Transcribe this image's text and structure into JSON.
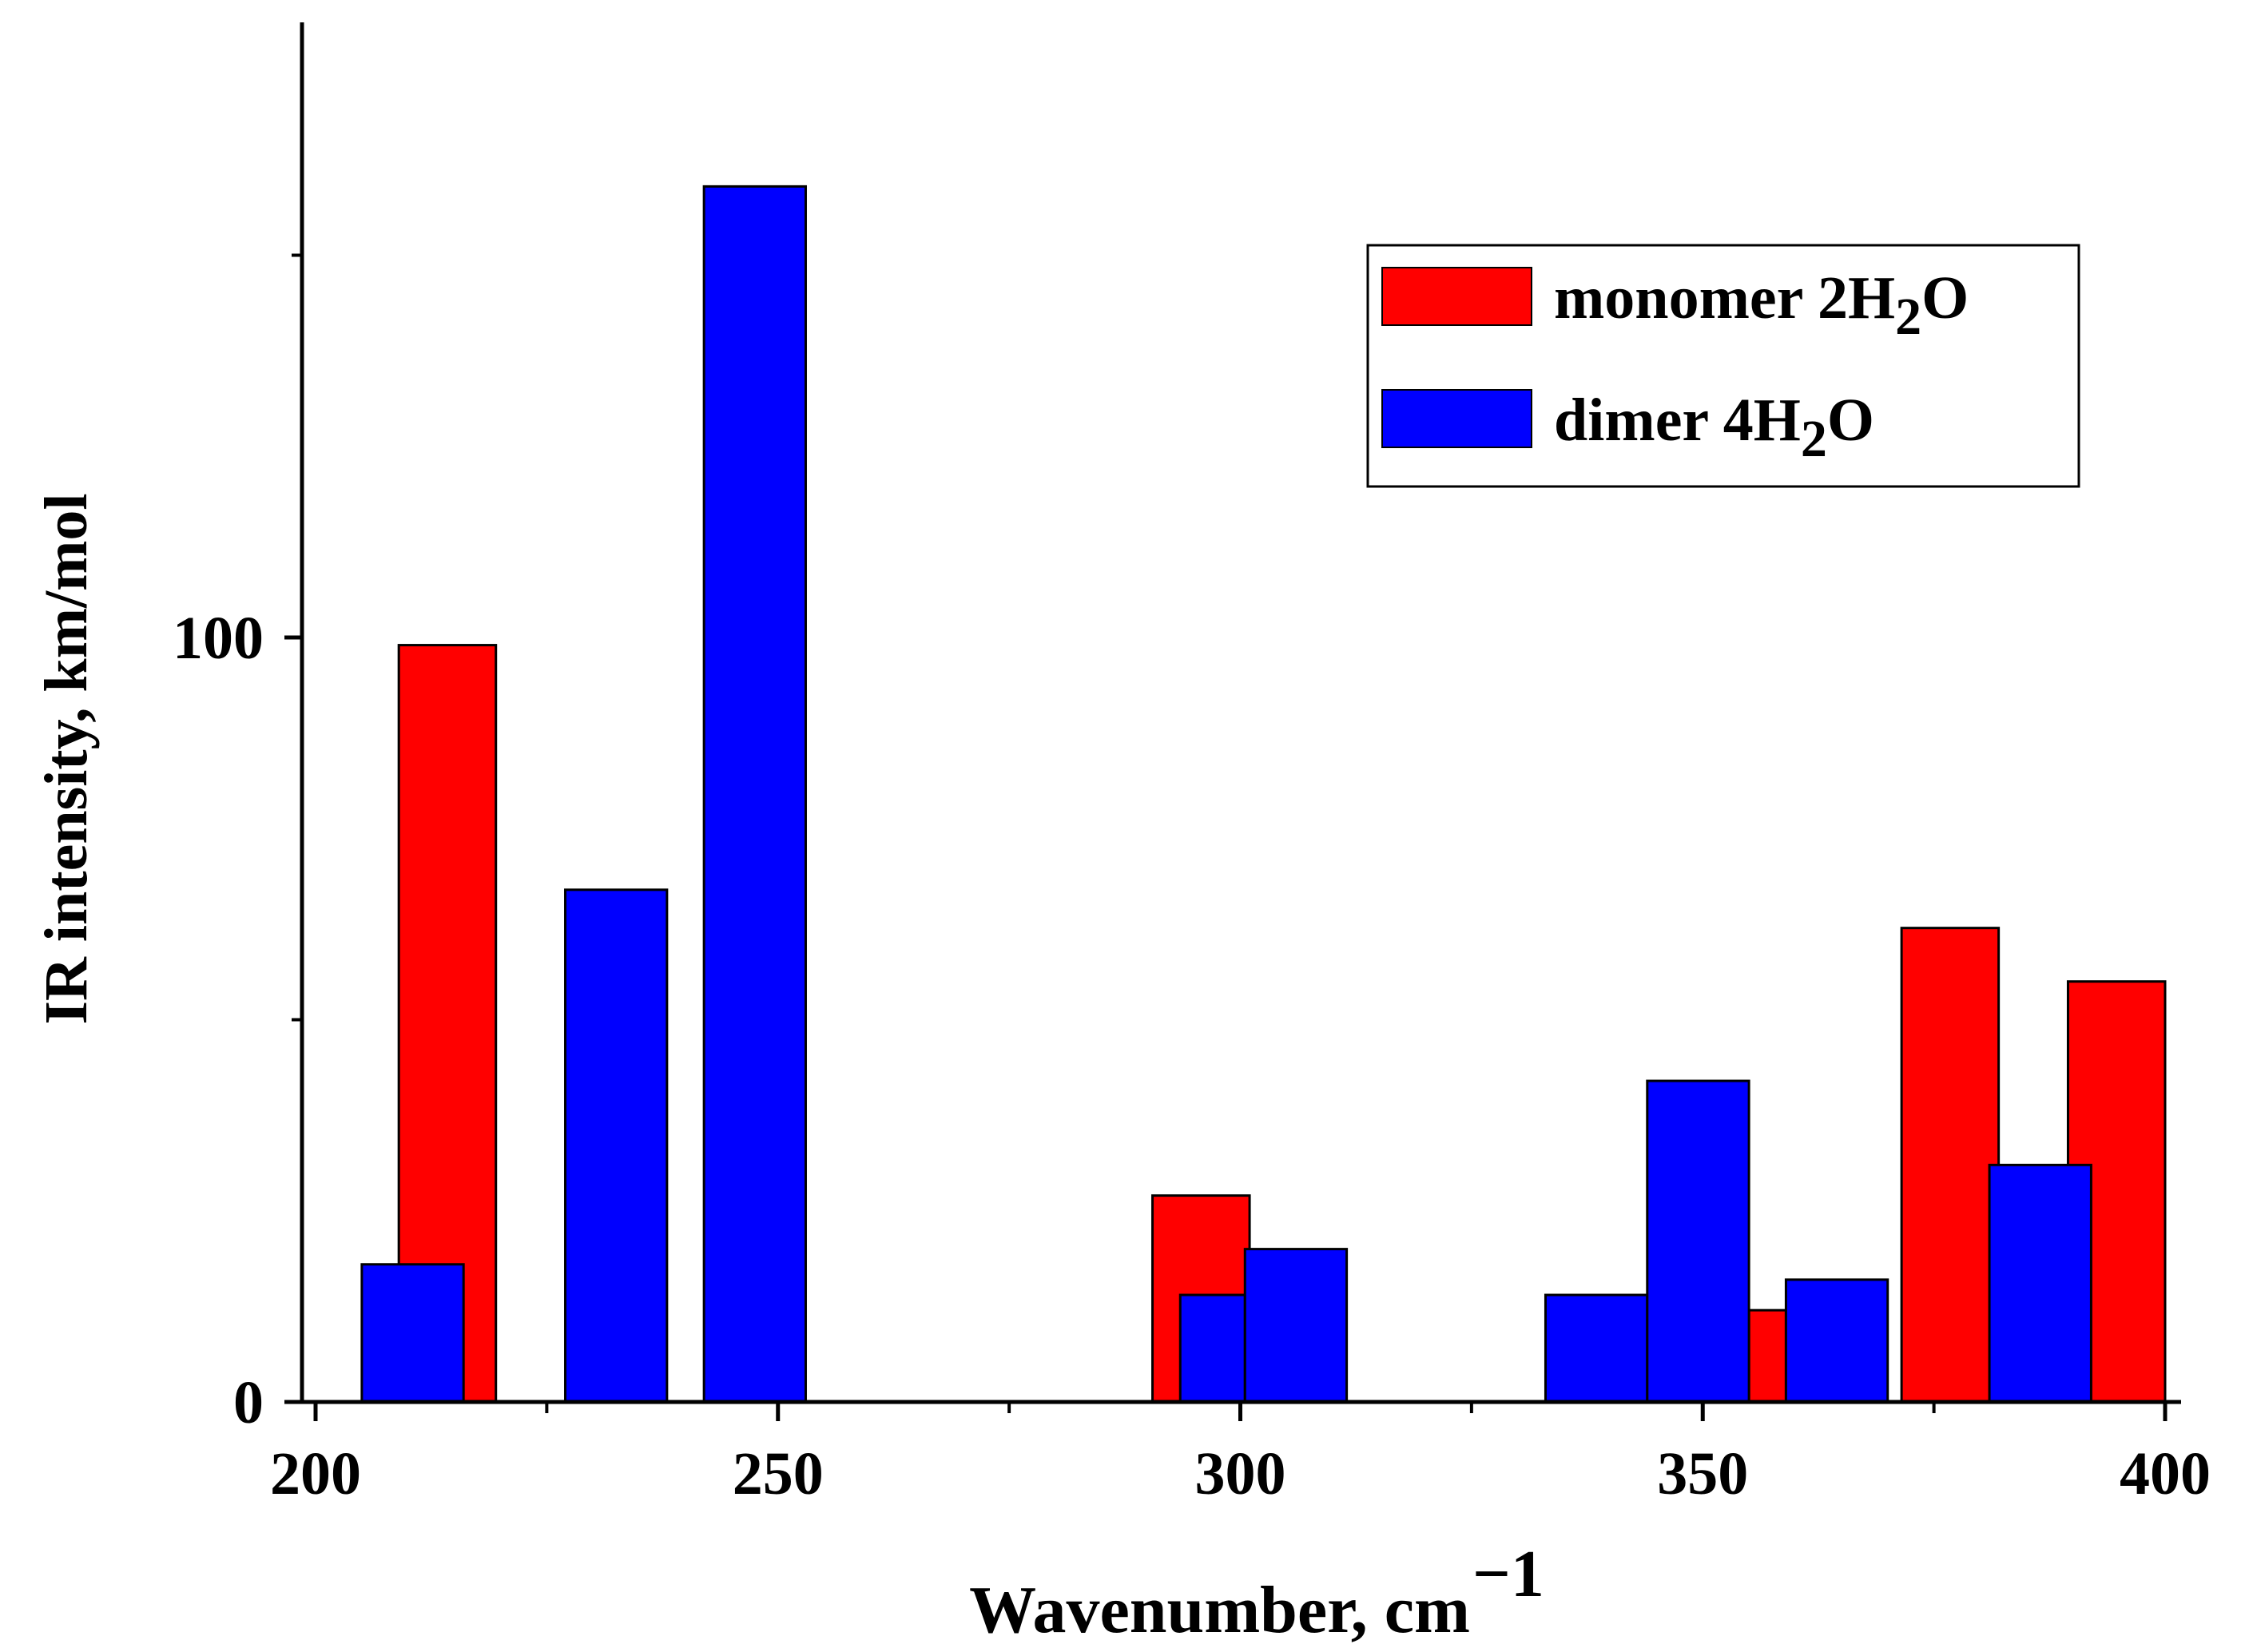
{
  "chart_data": {
    "type": "bar",
    "title": "",
    "xlabel": "Wavenumber, cm",
    "xlabel_superscript": "−1",
    "ylabel": "IR intensity, km/mol",
    "xlim": [
      200,
      400
    ],
    "ylim": [
      0,
      180
    ],
    "x_ticks": [
      200,
      250,
      300,
      350,
      400
    ],
    "x_minor_ticks": [
      225,
      275,
      325,
      375
    ],
    "y_ticks": [
      0,
      100
    ],
    "y_minor_ticks": [
      50,
      150
    ],
    "grid": false,
    "legend_position": "top-right",
    "series": [
      {
        "name": "monomer 2H2O",
        "legend_label": {
          "before": "monomer 2H",
          "sub": "2",
          "after": "O"
        },
        "color": "#ff0000",
        "bars": [
          {
            "x0": 209,
            "x1": 219.5,
            "value": 99
          },
          {
            "x0": 290.5,
            "x1": 301,
            "value": 27
          },
          {
            "x0": 355,
            "x1": 359,
            "value": 12
          },
          {
            "x0": 371.5,
            "x1": 382,
            "value": 62
          },
          {
            "x0": 389.5,
            "x1": 400,
            "value": 55
          }
        ]
      },
      {
        "name": "dimer 4H2O",
        "legend_label": {
          "before": "dimer 4H",
          "sub": "2",
          "after": "O"
        },
        "color": "#0000ff",
        "bars": [
          {
            "x0": 205,
            "x1": 216,
            "value": 18
          },
          {
            "x0": 227,
            "x1": 238,
            "value": 67
          },
          {
            "x0": 242,
            "x1": 253,
            "value": 159
          },
          {
            "x0": 293.5,
            "x1": 300.5,
            "value": 14
          },
          {
            "x0": 300.5,
            "x1": 311.5,
            "value": 20
          },
          {
            "x0": 333,
            "x1": 344,
            "value": 14
          },
          {
            "x0": 344,
            "x1": 355,
            "value": 42
          },
          {
            "x0": 359,
            "x1": 370,
            "value": 16
          },
          {
            "x0": 381,
            "x1": 392,
            "value": 31
          }
        ]
      }
    ]
  }
}
